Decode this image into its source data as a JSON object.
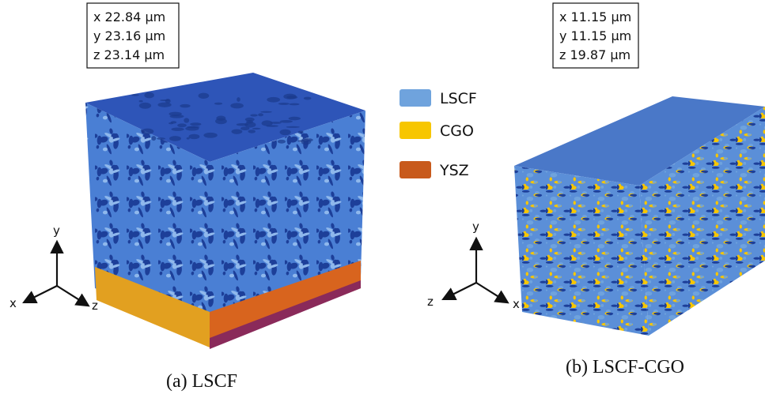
{
  "panels": [
    {
      "dimensions": [
        "x 22.84 µm",
        "y 23.16 µm",
        "z 23.14 µm"
      ],
      "axes": [
        "y",
        "x",
        "z"
      ],
      "caption": "(a)  LSCF"
    },
    {
      "dimensions": [
        "x 11.15 µm",
        "y 11.15 µm",
        "z 19.87 µm"
      ],
      "axes": [
        "y",
        "z",
        "x"
      ],
      "caption": "(b) LSCF-CGO"
    }
  ],
  "legend": [
    {
      "label": "LSCF",
      "color": "#6fa3dd"
    },
    {
      "label": "CGO",
      "color": "#f7c600"
    },
    {
      "label": "YSZ",
      "color": "#c85a1c"
    }
  ]
}
